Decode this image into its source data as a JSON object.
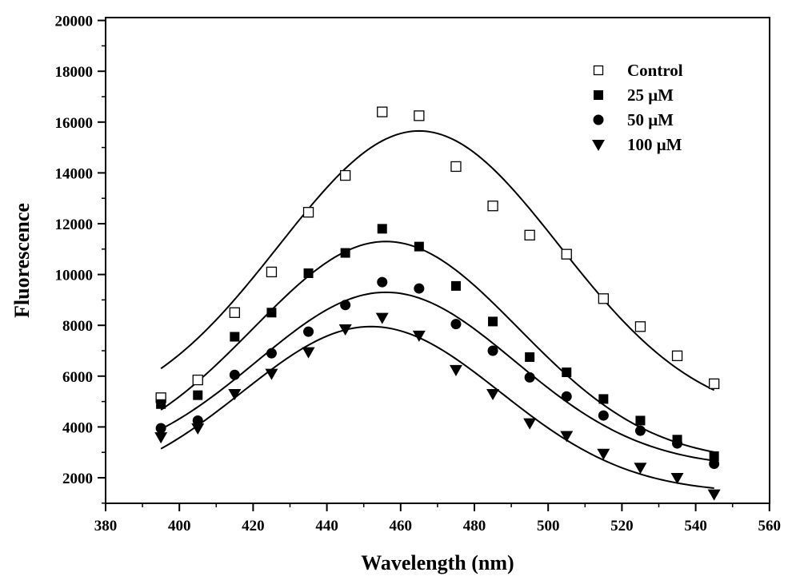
{
  "chart_data": {
    "type": "scatter",
    "xlabel": "Wavelength (nm)",
    "ylabel": "Fluorescence",
    "xlim": [
      380,
      560
    ],
    "ylim": [
      1000,
      20000
    ],
    "x_ticks": [
      380,
      400,
      420,
      440,
      460,
      480,
      500,
      520,
      540,
      560
    ],
    "y_ticks": [
      2000,
      4000,
      6000,
      8000,
      10000,
      12000,
      14000,
      16000,
      18000,
      20000
    ],
    "grid": false,
    "legend_position": "top-right",
    "x": [
      395,
      405,
      415,
      425,
      435,
      445,
      455,
      465,
      475,
      485,
      495,
      505,
      515,
      525,
      535,
      545
    ],
    "series": [
      {
        "name": "Control",
        "marker": "open-square",
        "values": [
          5150,
          5850,
          8500,
          10100,
          12450,
          13900,
          16400,
          16250,
          14250,
          12700,
          11550,
          10800,
          9050,
          7950,
          6800,
          5700
        ],
        "fit": {
          "peak_x": 465,
          "peak_y": 15650,
          "baseline": 4200,
          "amplitude": 11450,
          "sigma": 38
        }
      },
      {
        "name": "25 μM",
        "marker": "filled-square",
        "values": [
          4900,
          5250,
          7550,
          8500,
          10050,
          10850,
          11800,
          11100,
          9550,
          8150,
          6750,
          6150,
          5100,
          4250,
          3500,
          2850
        ],
        "fit": {
          "peak_x": 456,
          "peak_y": 11300,
          "baseline": 2600,
          "amplitude": 8700,
          "sigma": 36
        }
      },
      {
        "name": "50 μM",
        "marker": "filled-circle",
        "values": [
          3950,
          4250,
          6050,
          6900,
          7750,
          8800,
          9700,
          9450,
          8050,
          7000,
          5950,
          5200,
          4450,
          3850,
          3350,
          2550
        ],
        "fit": {
          "peak_x": 456,
          "peak_y": 9300,
          "baseline": 2400,
          "amplitude": 6900,
          "sigma": 35
        }
      },
      {
        "name": "100 μM",
        "marker": "filled-triangle-down",
        "values": [
          3600,
          3950,
          5300,
          6100,
          6950,
          7850,
          8300,
          7600,
          6250,
          5300,
          4150,
          3650,
          2950,
          2400,
          2000,
          1350
        ],
        "fit": {
          "peak_x": 452,
          "peak_y": 7950,
          "baseline": 1400,
          "amplitude": 6550,
          "sigma": 35
        }
      }
    ]
  }
}
